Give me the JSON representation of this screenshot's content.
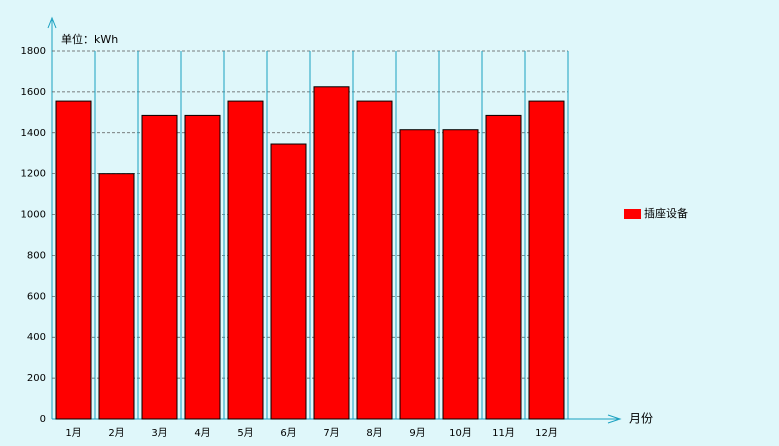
{
  "chart_data": {
    "type": "bar",
    "y_axis_label": "单位：kWh",
    "x_axis_label": "月份",
    "categories": [
      "1月",
      "2月",
      "3月",
      "4月",
      "5月",
      "6月",
      "7月",
      "8月",
      "9月",
      "10月",
      "11月",
      "12月"
    ],
    "series": [
      {
        "name": "插座设备",
        "color": "#ff0000",
        "values": [
          1555,
          1200,
          1485,
          1485,
          1555,
          1345,
          1625,
          1555,
          1415,
          1415,
          1485,
          1555
        ]
      }
    ],
    "ylim": [
      0,
      1800
    ],
    "yticks": [
      0,
      200,
      400,
      600,
      800,
      1000,
      1200,
      1400,
      1600,
      1800
    ],
    "grid": true,
    "legend": "right"
  }
}
